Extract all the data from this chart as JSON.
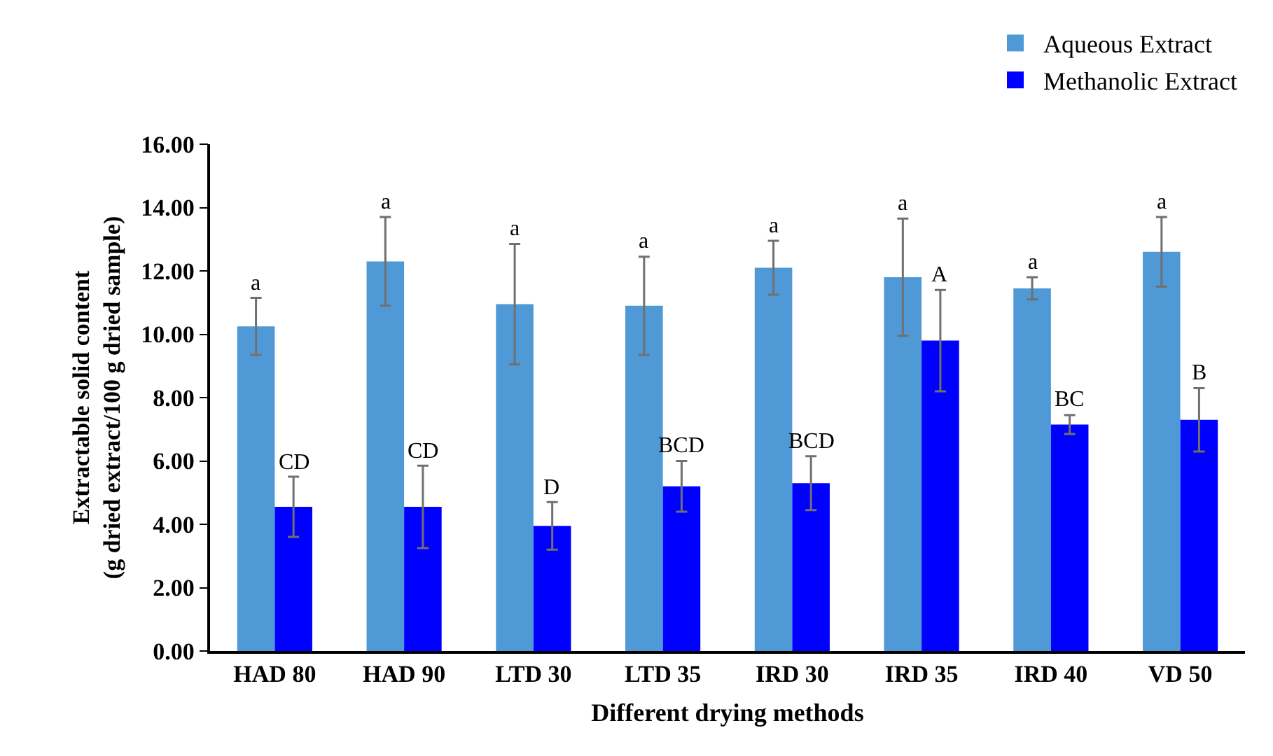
{
  "chart_data": {
    "type": "bar",
    "xlabel": "Different drying methods",
    "ylabel": "Extractable solid content\n(g dried extract/100 g dried sample)",
    "categories": [
      "HAD 80",
      "HAD 90",
      "LTD 30",
      "LTD 35",
      "IRD 30",
      "IRD 35",
      "IRD 40",
      "VD 50"
    ],
    "series": [
      {
        "name": "Aqueous Extract",
        "color": "#4f9ad6",
        "values": [
          10.25,
          12.3,
          10.95,
          10.9,
          12.1,
          11.8,
          11.45,
          12.6
        ],
        "errors": [
          0.9,
          1.4,
          1.9,
          1.55,
          0.85,
          1.85,
          0.35,
          1.1
        ]
      },
      {
        "name": "Methanolic Extract",
        "color": "#0000ff",
        "values": [
          4.55,
          4.55,
          3.95,
          5.2,
          5.3,
          9.8,
          7.15,
          7.3
        ],
        "errors": [
          0.95,
          1.3,
          0.75,
          0.8,
          0.85,
          1.6,
          0.3,
          1.0
        ]
      }
    ],
    "annotations": [
      {
        "text": "a",
        "x": "HAD 80",
        "y": 10.25
      },
      {
        "text": "a",
        "x": "HAD 90",
        "y": 12.3
      },
      {
        "text": "a",
        "x": "LTD 30",
        "y": 10.95
      },
      {
        "text": "a",
        "x": "LTD 35",
        "y": 10.9
      },
      {
        "text": "a",
        "x": "IRD 30",
        "y": 12.1
      },
      {
        "text": "a",
        "x": "IRD 35",
        "y": 11.8
      },
      {
        "text": "a",
        "x": "IRD 40",
        "y": 11.45
      },
      {
        "text": "a",
        "x": "VD 50",
        "y": 12.6
      },
      {
        "text": "CD",
        "x": "HAD 80",
        "y": 4.55
      },
      {
        "text": "CD",
        "x": "HAD 90",
        "y": 4.55
      },
      {
        "text": "D",
        "x": "LTD 30",
        "y": 3.95
      },
      {
        "text": "BCD",
        "x": "LTD 35",
        "y": 5.2
      },
      {
        "text": "BCD",
        "x": "IRD 30",
        "y": 5.3
      },
      {
        "text": "A",
        "x": "IRD 35",
        "y": 9.8
      },
      {
        "text": "BC",
        "x": "IRD 40",
        "y": 7.15
      },
      {
        "text": "B",
        "x": "VD 50",
        "y": 7.3
      }
    ],
    "ylim": [
      0,
      16
    ],
    "yticks": [
      {
        "value": 0,
        "label": "0.00"
      },
      {
        "value": 2,
        "label": "2.00"
      },
      {
        "value": 4,
        "label": "4.00"
      },
      {
        "value": 6,
        "label": "6.00"
      },
      {
        "value": 8,
        "label": "8.00"
      },
      {
        "value": 10,
        "label": "10.00"
      },
      {
        "value": 12,
        "label": "12.00"
      },
      {
        "value": 14,
        "label": "14.00"
      },
      {
        "value": 16,
        "label": "16.00"
      }
    ],
    "grid": false,
    "legend": "top right"
  }
}
